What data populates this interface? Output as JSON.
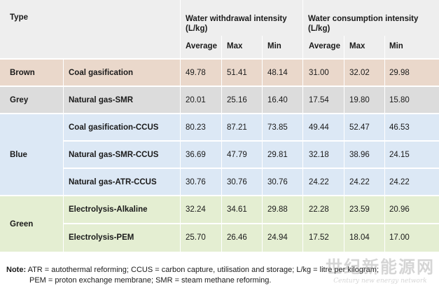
{
  "header": {
    "type_label": "Type",
    "withdrawal_title": "Water withdrawal intensity (L/kg)",
    "consumption_title": "Water consumption intensity (L/kg)",
    "cols": [
      "Average",
      "Max",
      "Min",
      "Average",
      "Max",
      "Min"
    ]
  },
  "groups": [
    {
      "type": "Brown",
      "color": "#ead8cb",
      "rows": [
        {
          "process": "Coal gasification",
          "values": [
            "49.78",
            "51.41",
            "48.14",
            "31.00",
            "32.02",
            "29.98"
          ]
        }
      ]
    },
    {
      "type": "Grey",
      "color": "#dcdcdc",
      "rows": [
        {
          "process": "Natural gas-SMR",
          "values": [
            "20.01",
            "25.16",
            "16.40",
            "17.54",
            "19.80",
            "15.80"
          ]
        }
      ]
    },
    {
      "type": "Blue",
      "color": "#dce8f5",
      "rows": [
        {
          "process": "Coal gasification-CCUS",
          "values": [
            "80.23",
            "87.21",
            "73.85",
            "49.44",
            "52.47",
            "46.53"
          ]
        },
        {
          "process": "Natural gas-SMR-CCUS",
          "values": [
            "36.69",
            "47.79",
            "29.81",
            "32.18",
            "38.96",
            "24.15"
          ]
        },
        {
          "process": "Natural gas-ATR-CCUS",
          "values": [
            "30.76",
            "30.76",
            "30.76",
            "24.22",
            "24.22",
            "24.22"
          ]
        }
      ]
    },
    {
      "type": "Green",
      "color": "#e4eed2",
      "rows": [
        {
          "process": "Electrolysis-Alkaline",
          "values": [
            "32.24",
            "34.61",
            "29.88",
            "22.28",
            "23.59",
            "20.96"
          ]
        },
        {
          "process": "Electrolysis-PEM",
          "values": [
            "25.70",
            "26.46",
            "24.94",
            "17.52",
            "18.04",
            "17.00"
          ]
        }
      ]
    }
  ],
  "note": {
    "label": "Note:",
    "line1": "ATR = autothermal reforming; CCUS = carbon capture, utilisation and storage; L/kg = litre per kilogram;",
    "line2": "PEM = proton exchange membrane; SMR = steam methane reforming."
  },
  "watermark": {
    "logo": "世纪新能源网",
    "sub": "Century new energy network"
  }
}
